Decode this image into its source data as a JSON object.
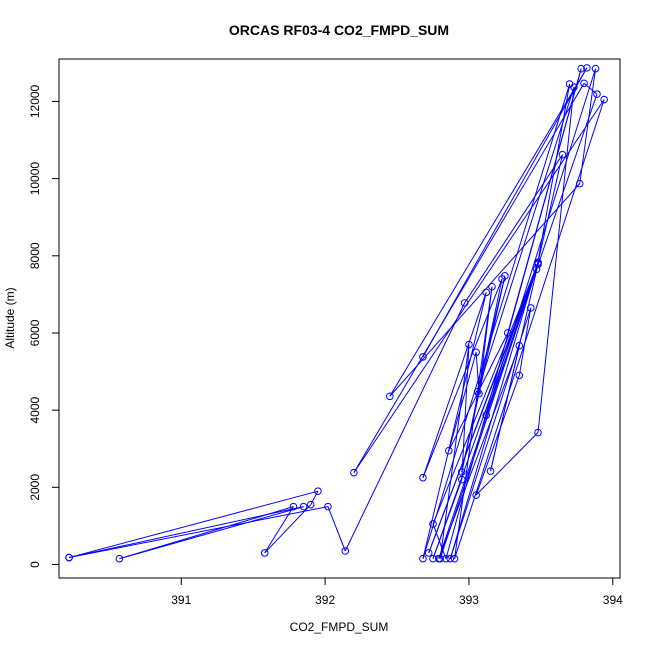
{
  "chart_data": {
    "type": "line",
    "title": "ORCAS RF03-4 CO2_FMPD_SUM",
    "xlabel": "CO2_FMPD_SUM",
    "ylabel": "Altitude (m)",
    "xlim": [
      390.15,
      394.05
    ],
    "ylim": [
      -350,
      13100
    ],
    "x_ticks": [
      391,
      392,
      393,
      394
    ],
    "y_ticks": [
      0,
      2000,
      4000,
      6000,
      8000,
      10000,
      12000
    ],
    "color": "#0000ff",
    "marker": "open-circle",
    "grid": false,
    "series": [
      {
        "points": [
          [
            390.22,
            180
          ],
          [
            391.85,
            1500
          ],
          [
            390.57,
            150
          ],
          [
            391.78,
            1500
          ],
          [
            391.58,
            300
          ],
          [
            391.9,
            1550
          ],
          [
            391.95,
            1900
          ],
          [
            390.22,
            180
          ],
          [
            392.02,
            1500
          ],
          [
            392.14,
            350
          ],
          [
            392.97,
            6780
          ],
          [
            393.65,
            10620
          ],
          [
            393.48,
            7830
          ],
          [
            392.72,
            300
          ],
          [
            393.48,
            7780
          ],
          [
            393.15,
            2420
          ],
          [
            393.35,
            5670
          ],
          [
            392.79,
            150
          ],
          [
            393.48,
            7830
          ],
          [
            392.75,
            150
          ],
          [
            392.95,
            2200
          ],
          [
            393.0,
            5700
          ],
          [
            392.8,
            150
          ],
          [
            393.47,
            7650
          ],
          [
            393.7,
            12450
          ],
          [
            392.68,
            150
          ],
          [
            393.12,
            7050
          ],
          [
            392.68,
            2250
          ],
          [
            393.23,
            7400
          ],
          [
            392.95,
            2400
          ],
          [
            393.25,
            7480
          ],
          [
            393.06,
            4480
          ],
          [
            393.73,
            12370
          ],
          [
            393.48,
            3420
          ],
          [
            393.05,
            1800
          ],
          [
            393.35,
            4900
          ],
          [
            393.43,
            6650
          ],
          [
            392.87,
            150
          ],
          [
            393.48,
            7810
          ],
          [
            392.75,
            1050
          ],
          [
            392.84,
            150
          ],
          [
            393.78,
            12850
          ],
          [
            393.27,
            6000
          ],
          [
            392.86,
            2950
          ],
          [
            393.05,
            5500
          ],
          [
            393.07,
            4430
          ],
          [
            393.16,
            7200
          ],
          [
            392.9,
            150
          ],
          [
            393.94,
            12050
          ],
          [
            392.2,
            2380
          ],
          [
            393.8,
            12470
          ],
          [
            393.89,
            12190
          ],
          [
            393.12,
            3870
          ],
          [
            393.88,
            12850
          ],
          [
            393.77,
            9870
          ],
          [
            392.45,
            4360
          ],
          [
            393.82,
            12870
          ],
          [
            392.68,
            5380
          ]
        ]
      }
    ]
  }
}
